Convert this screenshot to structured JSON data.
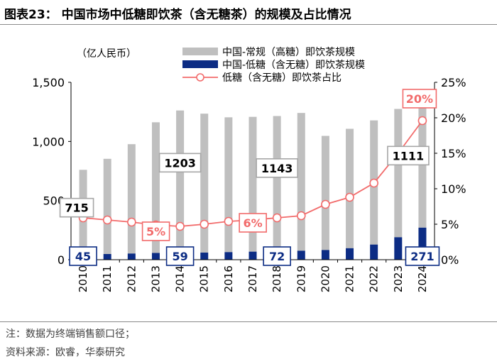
{
  "figure": {
    "title": "图表23：   中国市场中低糖即饮茶（含无糖茶）的规模及占比情况",
    "note": "注：数据为终端销售额口径；",
    "source": "资料来源：欧睿，华泰研究"
  },
  "chart_data": {
    "type": "bar",
    "unit_label": "（亿人民币）",
    "categories": [
      "2010",
      "2011",
      "2012",
      "2013",
      "2014",
      "2015",
      "2016",
      "2017",
      "2018",
      "2019",
      "2020",
      "2021",
      "2022",
      "2023",
      "2024"
    ],
    "series": [
      {
        "name": "中国-常规（高糖）即饮茶规模",
        "type": "bar",
        "color": "#bfbfbf",
        "values": [
          715,
          805,
          925,
          1105,
          1203,
          1175,
          1140,
          1140,
          1143,
          1165,
          965,
          1010,
          1050,
          1085,
          1111
        ]
      },
      {
        "name": "中国-低糖（含无糖）即饮茶规模",
        "type": "bar",
        "color": "#0c2c84",
        "values": [
          45,
          48,
          52,
          57,
          59,
          60,
          64,
          68,
          72,
          76,
          82,
          97,
          128,
          190,
          271
        ]
      },
      {
        "name": "低糖（含无糖）即饮茶占比",
        "type": "line",
        "axis": "right",
        "color": "#f26b6b",
        "values": [
          5.9,
          5.6,
          5.3,
          4.9,
          4.7,
          5.0,
          5.4,
          5.6,
          5.9,
          6.2,
          7.8,
          8.8,
          10.8,
          15.0,
          19.6
        ]
      }
    ],
    "y_left": {
      "min": 0,
      "max": 1500,
      "ticks": [
        0,
        500,
        1000,
        1500
      ],
      "tick_labels": [
        "0",
        "500",
        "1,000",
        "1,500"
      ]
    },
    "y_right": {
      "min": 0,
      "max": 25,
      "ticks": [
        0,
        5,
        10,
        15,
        20,
        25
      ],
      "tick_labels": [
        "0%",
        "5%",
        "10%",
        "15%",
        "20%",
        "25%"
      ]
    },
    "legend": [
      {
        "label": "中国-常规（高糖）即饮茶规模",
        "marker": "bar",
        "color": "#bfbfbf"
      },
      {
        "label": "中国-低糖（含无糖）即饮茶规模",
        "marker": "bar",
        "color": "#0c2c84"
      },
      {
        "label": "低糖（含无糖）即饮茶占比",
        "marker": "line",
        "color": "#f26b6b"
      }
    ],
    "legend_position": "top",
    "callouts": [
      {
        "text": "715",
        "series": 0,
        "index": 0,
        "style": "gray"
      },
      {
        "text": "1203",
        "series": 0,
        "index": 4,
        "style": "gray"
      },
      {
        "text": "1143",
        "series": 0,
        "index": 8,
        "style": "gray"
      },
      {
        "text": "1111",
        "series": 0,
        "index": 14,
        "style": "gray"
      },
      {
        "text": "45",
        "series": 1,
        "index": 0,
        "style": "navy"
      },
      {
        "text": "59",
        "series": 1,
        "index": 4,
        "style": "navy"
      },
      {
        "text": "72",
        "series": 1,
        "index": 8,
        "style": "navy"
      },
      {
        "text": "271",
        "series": 1,
        "index": 14,
        "style": "navy"
      },
      {
        "text": "5%",
        "series": 2,
        "index": 4,
        "style": "red"
      },
      {
        "text": "6%",
        "series": 2,
        "index": 8,
        "style": "red"
      },
      {
        "text": "20%",
        "series": 2,
        "index": 14,
        "style": "red"
      }
    ]
  }
}
